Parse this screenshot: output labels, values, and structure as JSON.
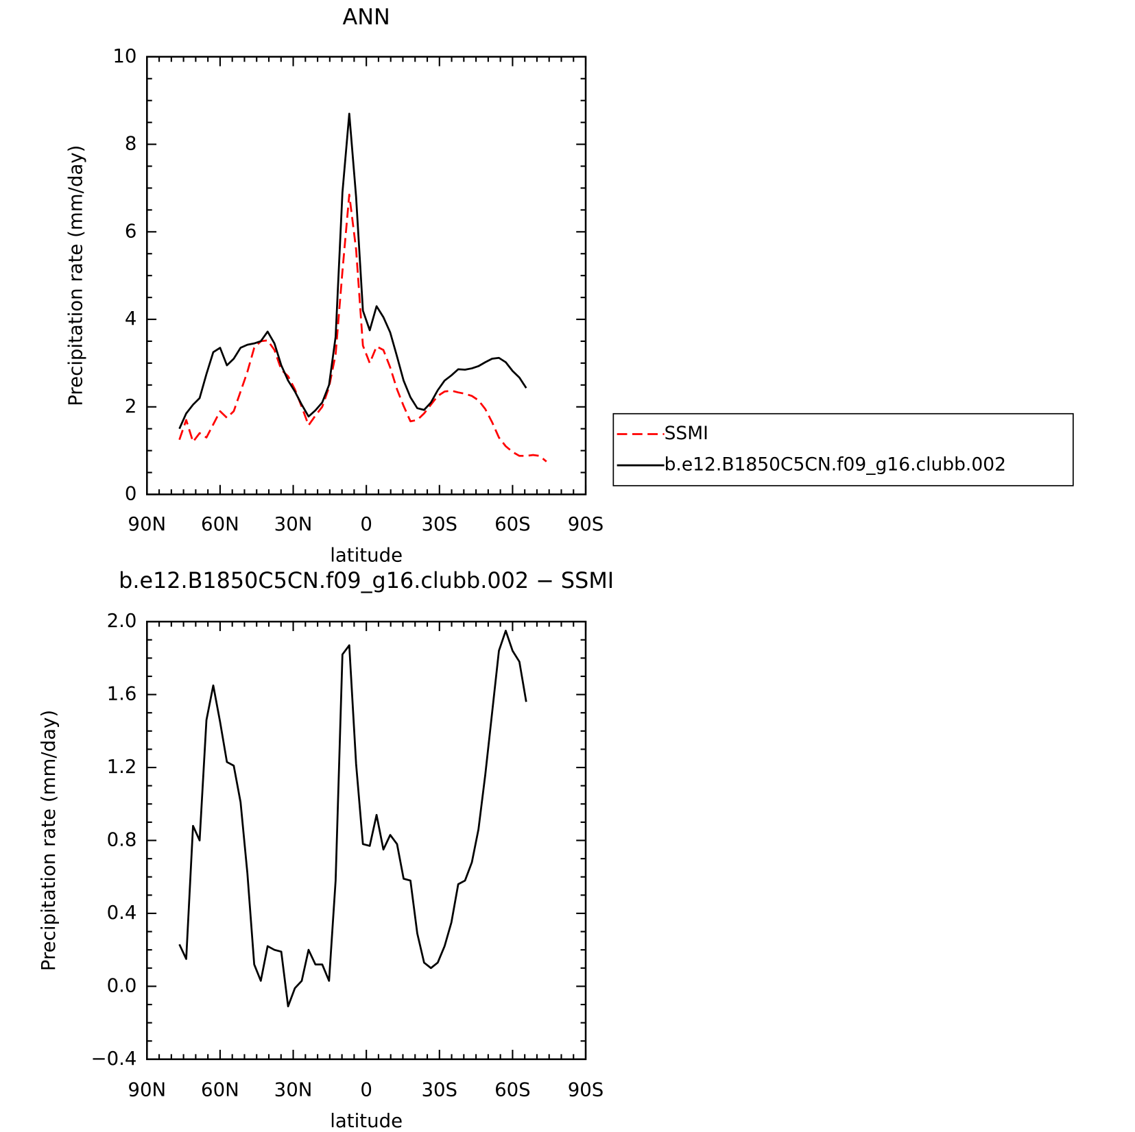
{
  "chart_data": [
    {
      "type": "line",
      "title": "ANN",
      "xlabel": "latitude",
      "ylabel": "Precipitation rate (mm/day)",
      "x": [
        76.7,
        73.9,
        71.1,
        68.4,
        65.6,
        62.8,
        60.0,
        57.2,
        54.4,
        51.6,
        48.8,
        46.0,
        43.3,
        40.5,
        37.7,
        34.9,
        32.1,
        29.3,
        26.5,
        23.7,
        20.9,
        18.1,
        15.3,
        12.6,
        9.8,
        7.0,
        4.2,
        1.4,
        -1.4,
        -4.2,
        -7.0,
        -9.8,
        -12.6,
        -15.3,
        -18.1,
        -20.9,
        -23.7,
        -26.5,
        -29.3,
        -32.1,
        -34.9,
        -37.7,
        -40.5,
        -43.3,
        -46.0,
        -48.8,
        -51.6,
        -54.4,
        -57.2,
        -60.0,
        -62.8,
        -65.6,
        -68.4,
        -71.1,
        -73.9
      ],
      "series": [
        {
          "name": "SSMI",
          "color": "#ff0000",
          "line_style": "dashed",
          "values": [
            1.25,
            1.7,
            1.2,
            1.4,
            1.3,
            1.6,
            1.9,
            1.75,
            1.9,
            2.35,
            2.8,
            3.35,
            3.5,
            3.52,
            3.3,
            2.85,
            2.7,
            2.4,
            2.0,
            1.58,
            1.8,
            2.0,
            2.45,
            3.2,
            5.1,
            6.85,
            5.6,
            3.4,
            3.0,
            3.38,
            3.3,
            2.9,
            2.4,
            2.02,
            1.67,
            1.7,
            1.85,
            2.05,
            2.25,
            2.35,
            2.37,
            2.33,
            2.3,
            2.25,
            2.15,
            1.95,
            1.65,
            1.3,
            1.1,
            0.97,
            0.88,
            0.88,
            0.9,
            0.88,
            0.75
          ]
        },
        {
          "name": "b.e12.B1850C5CN.f09_g16.clubb.002",
          "color": "#000000",
          "line_style": "solid",
          "values": [
            1.5,
            1.85,
            2.05,
            2.2,
            2.75,
            3.25,
            3.35,
            2.95,
            3.1,
            3.35,
            3.42,
            3.45,
            3.5,
            3.72,
            3.45,
            2.95,
            2.6,
            2.35,
            2.05,
            1.78,
            1.92,
            2.1,
            2.5,
            3.6,
            6.9,
            8.7,
            6.8,
            4.2,
            3.75,
            4.3,
            4.05,
            3.7,
            3.15,
            2.6,
            2.22,
            1.97,
            1.93,
            2.1,
            2.38,
            2.6,
            2.72,
            2.86,
            2.85,
            2.88,
            2.93,
            3.02,
            3.1,
            3.12,
            3.02,
            2.82,
            2.67,
            2.43,
            null,
            null,
            null
          ]
        }
      ],
      "xlim": [
        90,
        -90
      ],
      "xticks": [
        {
          "value": 90,
          "label": "90N"
        },
        {
          "value": 60,
          "label": "60N"
        },
        {
          "value": 30,
          "label": "30N"
        },
        0,
        {
          "value": -30,
          "label": "30S"
        },
        {
          "value": -60,
          "label": "60S"
        },
        {
          "value": -90,
          "label": "90S"
        }
      ],
      "xminorticks": [
        85,
        80,
        75,
        70,
        65,
        55,
        50,
        45,
        40,
        35,
        25,
        20,
        15,
        10,
        5,
        -5,
        -10,
        -15,
        -20,
        -25,
        -35,
        -40,
        -45,
        -50,
        -55,
        -65,
        -70,
        -75,
        -80,
        -85
      ],
      "ylim": [
        0,
        10
      ],
      "yticks": [
        0,
        2,
        4,
        6,
        8,
        10
      ],
      "yminorticks": [
        0.5,
        1,
        1.5,
        2.5,
        3,
        3.5,
        4.5,
        5,
        5.5,
        6.5,
        7,
        7.5,
        8.5,
        9,
        9.5
      ],
      "legend": "outside right"
    },
    {
      "type": "line",
      "title": "b.e12.B1850C5CN.f09_g16.clubb.002 − SSMI",
      "xlabel": "latitude",
      "ylabel": "Precipitation rate (mm/day)",
      "x": [
        76.7,
        73.9,
        71.1,
        68.4,
        65.6,
        62.8,
        60.0,
        57.2,
        54.4,
        51.6,
        48.8,
        46.0,
        43.3,
        40.5,
        37.7,
        34.9,
        32.1,
        29.3,
        26.5,
        23.7,
        20.9,
        18.1,
        15.3,
        12.6,
        9.8,
        7.0,
        4.2,
        1.4,
        -1.4,
        -4.2,
        -7.0,
        -9.8,
        -12.6,
        -15.3,
        -18.1,
        -20.9,
        -23.7,
        -26.5,
        -29.3,
        -32.1,
        -34.9,
        -37.7,
        -40.5,
        -43.3,
        -46.0,
        -48.8,
        -51.6,
        -54.4,
        -57.2,
        -60.0,
        -62.8,
        -65.6
      ],
      "color": "#000000",
      "line_style": "solid",
      "values": [
        0.23,
        0.15,
        0.88,
        0.8,
        1.46,
        1.65,
        1.45,
        1.23,
        1.21,
        1.01,
        0.62,
        0.12,
        0.03,
        0.22,
        0.2,
        0.19,
        -0.11,
        -0.01,
        0.03,
        0.2,
        0.12,
        0.12,
        0.03,
        0.58,
        1.82,
        1.87,
        1.22,
        0.78,
        0.77,
        0.94,
        0.75,
        0.83,
        0.78,
        0.59,
        0.58,
        0.29,
        0.13,
        0.1,
        0.13,
        0.22,
        0.35,
        0.56,
        0.58,
        0.68,
        0.86,
        1.16,
        1.5,
        1.84,
        1.95,
        1.84,
        1.78,
        1.56
      ],
      "xlim": [
        90,
        -90
      ],
      "xticks": [
        {
          "value": 90,
          "label": "90N"
        },
        {
          "value": 60,
          "label": "60N"
        },
        {
          "value": 30,
          "label": "30N"
        },
        0,
        {
          "value": -30,
          "label": "30S"
        },
        {
          "value": -60,
          "label": "60S"
        },
        {
          "value": -90,
          "label": "90S"
        }
      ],
      "xminorticks": [
        85,
        80,
        75,
        70,
        65,
        55,
        50,
        45,
        40,
        35,
        25,
        20,
        15,
        10,
        5,
        -5,
        -10,
        -15,
        -20,
        -25,
        -35,
        -40,
        -45,
        -50,
        -55,
        -65,
        -70,
        -75,
        -80,
        -85
      ],
      "ylim": [
        -0.4,
        2.0
      ],
      "yticks": [
        {
          "value": -0.4,
          "label": "−0.4"
        },
        {
          "value": 0,
          "label": "0.0"
        },
        {
          "value": 0.4,
          "label": "0.4"
        },
        {
          "value": 0.8,
          "label": "0.8"
        },
        {
          "value": 1.2,
          "label": "1.2"
        },
        {
          "value": 1.6,
          "label": "1.6"
        },
        {
          "value": 2.0,
          "label": "2.0"
        }
      ],
      "yminorticks": [
        -0.3,
        -0.2,
        -0.1,
        0.1,
        0.2,
        0.3,
        0.5,
        0.6,
        0.7,
        0.9,
        1.0,
        1.1,
        1.3,
        1.4,
        1.5,
        1.7,
        1.8,
        1.9
      ]
    }
  ]
}
